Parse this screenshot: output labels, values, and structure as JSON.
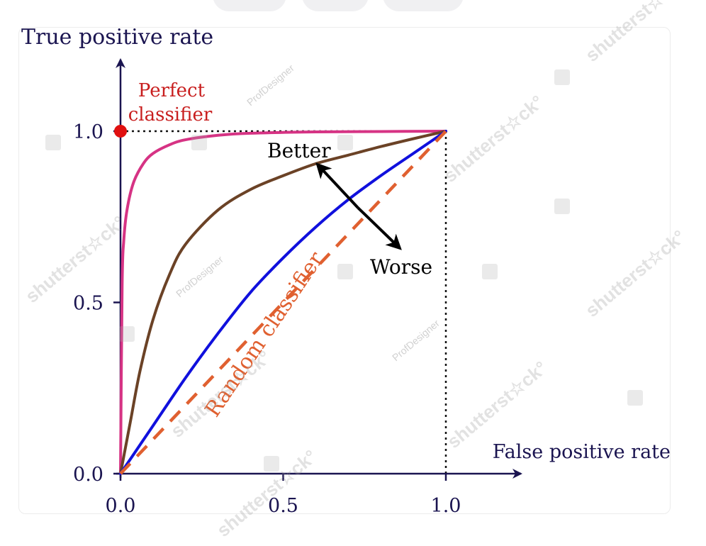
{
  "chart_data": {
    "type": "line",
    "ylabel": "True positive rate",
    "xlabel": "False positive rate",
    "xticks": [
      "0.0",
      "0.5",
      "1.0"
    ],
    "yticks": [
      "0.0",
      "0.5",
      "1.0"
    ],
    "xlim": [
      0,
      1
    ],
    "ylim": [
      0,
      1
    ],
    "series": [
      {
        "name": "",
        "color": "#d63384",
        "x": [
          0,
          0.005,
          0.01,
          0.02,
          0.04,
          0.07,
          0.1,
          0.15,
          0.2,
          0.3,
          0.4,
          0.6,
          0.8,
          1.0
        ],
        "y": [
          0,
          0.55,
          0.68,
          0.77,
          0.85,
          0.905,
          0.935,
          0.96,
          0.975,
          0.988,
          0.994,
          0.998,
          0.999,
          1.0
        ]
      },
      {
        "name": "",
        "color": "#6b4226",
        "x": [
          0,
          0.03,
          0.06,
          0.1,
          0.15,
          0.2,
          0.3,
          0.4,
          0.5,
          0.6,
          0.7,
          0.8,
          0.9,
          1.0
        ],
        "y": [
          0,
          0.15,
          0.3,
          0.45,
          0.58,
          0.67,
          0.77,
          0.83,
          0.87,
          0.905,
          0.93,
          0.955,
          0.978,
          1.0
        ]
      },
      {
        "name": "",
        "color": "#1010dd",
        "x": [
          0,
          0.1,
          0.2,
          0.3,
          0.4,
          0.5,
          0.6,
          0.7,
          0.8,
          0.9,
          1.0
        ],
        "y": [
          0,
          0.14,
          0.28,
          0.41,
          0.53,
          0.63,
          0.72,
          0.8,
          0.87,
          0.935,
          1.0
        ]
      },
      {
        "name": "Random classifier",
        "color": "#e06030",
        "dashed": true,
        "x": [
          0,
          1
        ],
        "y": [
          0,
          1
        ]
      }
    ],
    "perfect_point": {
      "label_line1": "Perfect",
      "label_line2": "classifier",
      "x": 0,
      "y": 1,
      "color": "#e01010"
    },
    "annotations": {
      "better": "Better",
      "worse": "Worse",
      "random": "Random classifier"
    }
  },
  "colors": {
    "axis": "#1a1450",
    "perfect_label": "#c81e1e",
    "random_label": "#e06030"
  },
  "watermarks": {
    "brand": "shutterst☆ck°",
    "author": "ProfDesigner"
  }
}
